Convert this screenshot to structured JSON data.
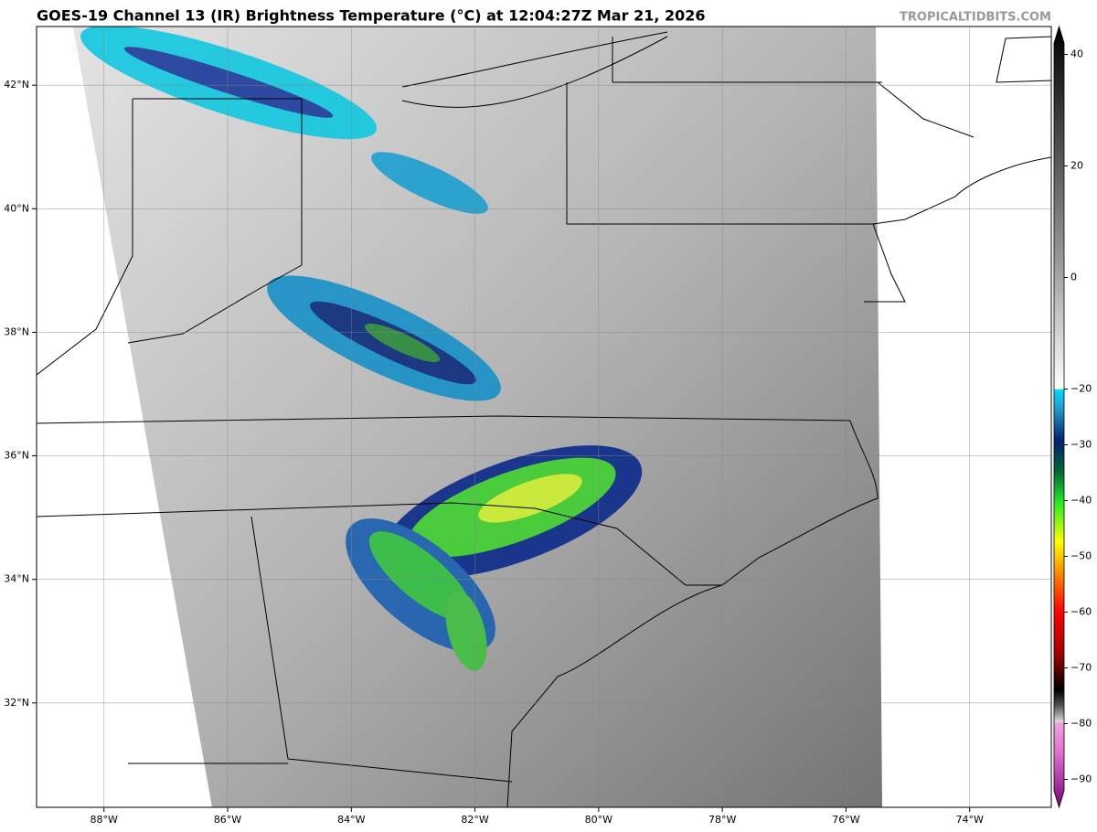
{
  "header": {
    "title": "GOES-19 Channel 13 (IR) Brightness Temperature (°C) at 12:04:27Z Mar 21, 2026",
    "watermark": "TROPICALTIDBITS.COM"
  },
  "map": {
    "xlim": [
      -89.09,
      -72.68
    ],
    "ylim": [
      30.31,
      42.95
    ],
    "xticks": [
      {
        "value": -88,
        "label": "88°W"
      },
      {
        "value": -86,
        "label": "86°W"
      },
      {
        "value": -84,
        "label": "84°W"
      },
      {
        "value": -82,
        "label": "82°W"
      },
      {
        "value": -80,
        "label": "80°W"
      },
      {
        "value": -78,
        "label": "78°W"
      },
      {
        "value": -76,
        "label": "76°W"
      },
      {
        "value": -74,
        "label": "74°W"
      }
    ],
    "yticks": [
      {
        "value": 32,
        "label": "32°N"
      },
      {
        "value": 34,
        "label": "34°N"
      },
      {
        "value": 36,
        "label": "36°N"
      },
      {
        "value": 38,
        "label": "38°N"
      },
      {
        "value": 40,
        "label": "40°N"
      },
      {
        "value": 42,
        "label": "42°N"
      }
    ],
    "grid": true
  },
  "colorbar": {
    "lim": [
      -95,
      45
    ],
    "ticks": [
      40,
      20,
      0,
      {
        "value": -20,
        "label": "−20"
      },
      {
        "value": -30,
        "label": "−30"
      },
      {
        "value": -40,
        "label": "−40"
      },
      {
        "value": -50,
        "label": "−50"
      },
      {
        "value": -60,
        "label": "−60"
      },
      {
        "value": -70,
        "label": "−70"
      },
      {
        "value": -80,
        "label": "−80"
      },
      {
        "value": -90,
        "label": "−90"
      }
    ]
  }
}
